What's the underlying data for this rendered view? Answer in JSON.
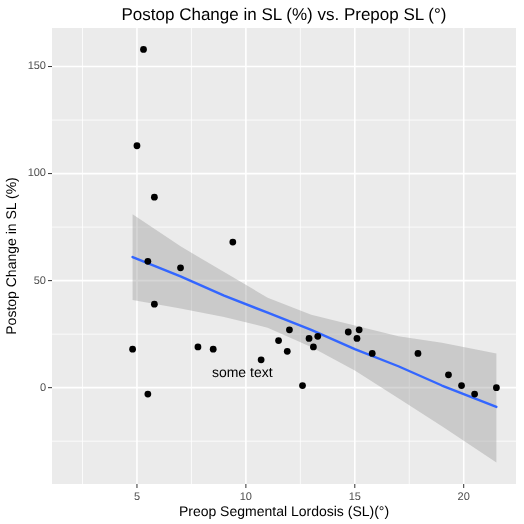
{
  "chart_data": {
    "type": "scatter",
    "title": "Postop Change in SL (%) vs. Prepop SL (°)",
    "xlabel": "Preop Segmental Lordosis (SL)(°)",
    "ylabel": "Postop Change in SL (%)",
    "xlim": [
      1.1,
      22.4
    ],
    "ylim": [
      -45,
      168
    ],
    "xticks": [
      5,
      10,
      15,
      20
    ],
    "yticks": [
      0,
      50,
      100,
      150
    ],
    "grid": true,
    "series": [
      {
        "color": "#000000",
        "marker": "circle",
        "x": [
          4.8,
          5.5,
          5.5,
          5.8,
          7.0,
          7.8,
          8.5,
          10.7,
          11.5,
          11.9,
          12.0,
          12.6,
          12.9,
          13.1,
          13.3,
          14.7,
          15.1,
          15.2,
          15.8,
          17.9,
          19.3,
          19.9,
          20.5,
          21.5,
          5.3,
          5.0,
          5.8,
          9.4
        ],
        "values": [
          18,
          -3,
          59,
          39,
          56,
          19,
          18,
          13,
          22,
          17,
          27,
          1,
          23,
          19,
          24,
          26,
          23,
          27,
          16,
          16,
          6,
          1,
          -3,
          0,
          158,
          113,
          89,
          68
        ]
      },
      {
        "type": "line",
        "color": "#3366ff",
        "x": [
          4.8,
          7,
          9,
          11,
          13,
          15,
          17,
          19,
          21.5
        ],
        "values": [
          61,
          52,
          43,
          35,
          27,
          18,
          10,
          1,
          -9
        ],
        "lower": [
          41,
          37,
          33,
          28,
          19,
          8,
          -5,
          -18,
          -35
        ],
        "upper": [
          81,
          66,
          54,
          42,
          34,
          29,
          24,
          21,
          16
        ]
      }
    ],
    "annotations": [
      "some text"
    ]
  }
}
